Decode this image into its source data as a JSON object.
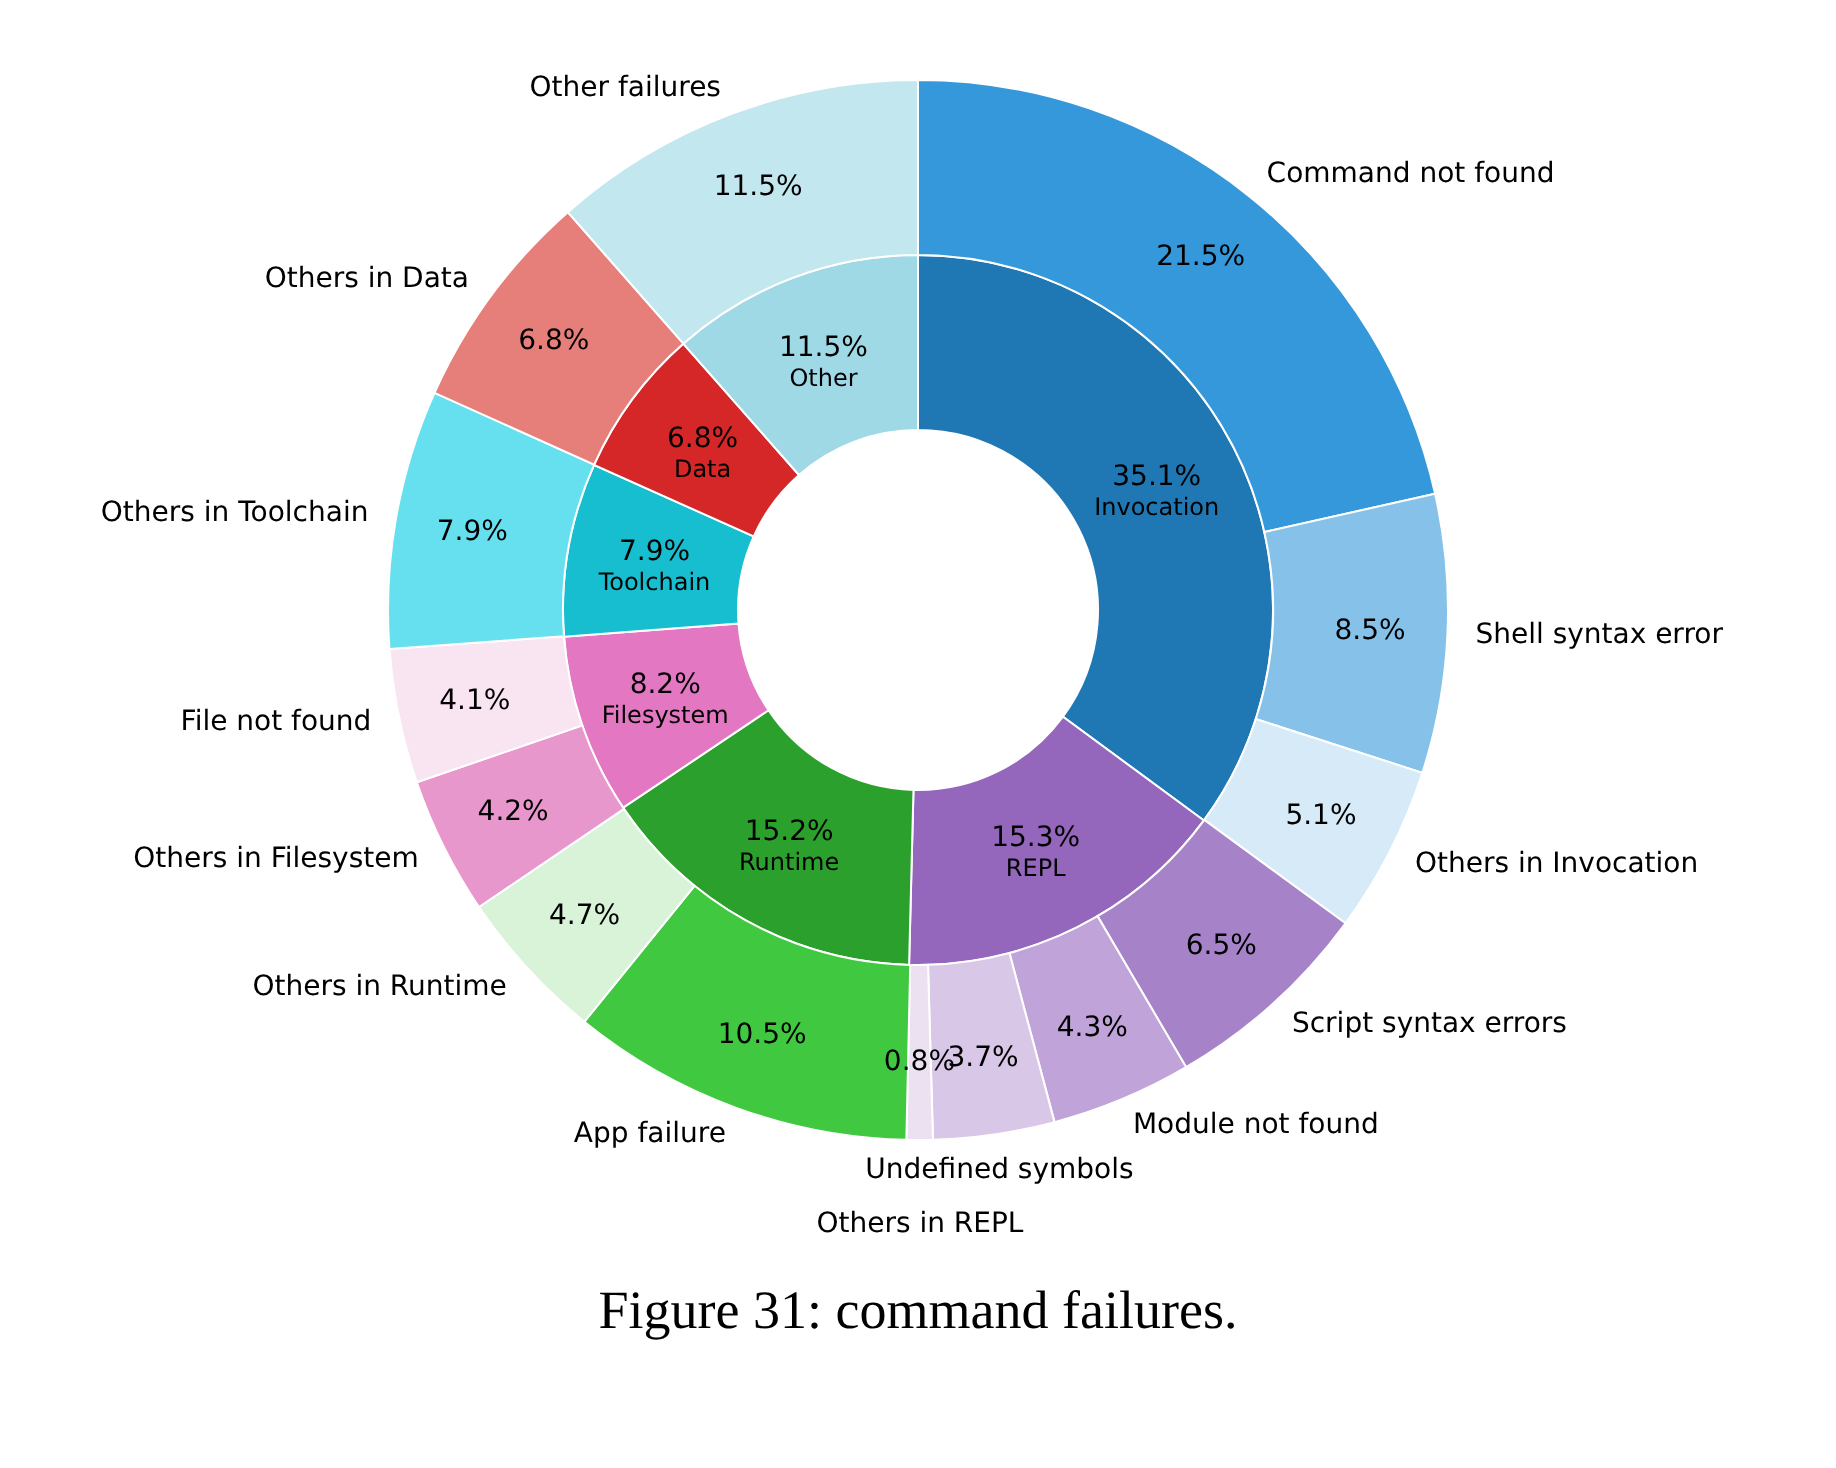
{
  "chart_data": [
    {
      "type": "donut",
      "categories": [
        "Invocation",
        "REPL",
        "Runtime",
        "Filesystem",
        "Toolchain",
        "Data",
        "Other"
      ],
      "values": [
        35.1,
        15.3,
        15.2,
        8.2,
        7.9,
        6.8,
        11.5
      ],
      "colors": [
        "#1f77b4",
        "#9467bd",
        "#2ca02c",
        "#e377c2",
        "#17becf",
        "#d62728",
        "#a0d9e6"
      ],
      "value_labels": [
        "35.1%",
        "15.3%",
        "15.2%",
        "8.2%",
        "7.9%",
        "6.8%",
        "11.5%"
      ]
    },
    {
      "type": "donut",
      "title": "Figure 31: command failures.",
      "categories": [
        "Command not found",
        "Shell syntax error",
        "Others in Invocation",
        "Script syntax errors",
        "Module not found",
        "Undefined symbols",
        "Others in REPL",
        "App failure",
        "Others in Runtime",
        "Others in Filesystem",
        "File not found",
        "Others in Toolchain",
        "Others in Data",
        "Other failures"
      ],
      "values": [
        21.5,
        8.5,
        5.1,
        6.5,
        4.3,
        3.7,
        0.8,
        10.5,
        4.7,
        4.2,
        4.1,
        7.9,
        6.8,
        11.5
      ],
      "colors": [
        "#3498db",
        "#85c1e9",
        "#d6eaf8",
        "#a683c8",
        "#c0a4d9",
        "#d8c7e6",
        "#ebe1f1",
        "#40c940",
        "#d9f3d9",
        "#e897cd",
        "#f9e5f2",
        "#66e0ee",
        "#e67f7a",
        "#c3e7ee"
      ],
      "value_labels": [
        "21.5%",
        "8.5%",
        "5.1%",
        "6.5%",
        "4.3%",
        "3.7%",
        "0.8%",
        "10.5%",
        "4.7%",
        "4.2%",
        "4.1%",
        "7.9%",
        "6.8%",
        "11.5%"
      ]
    }
  ]
}
